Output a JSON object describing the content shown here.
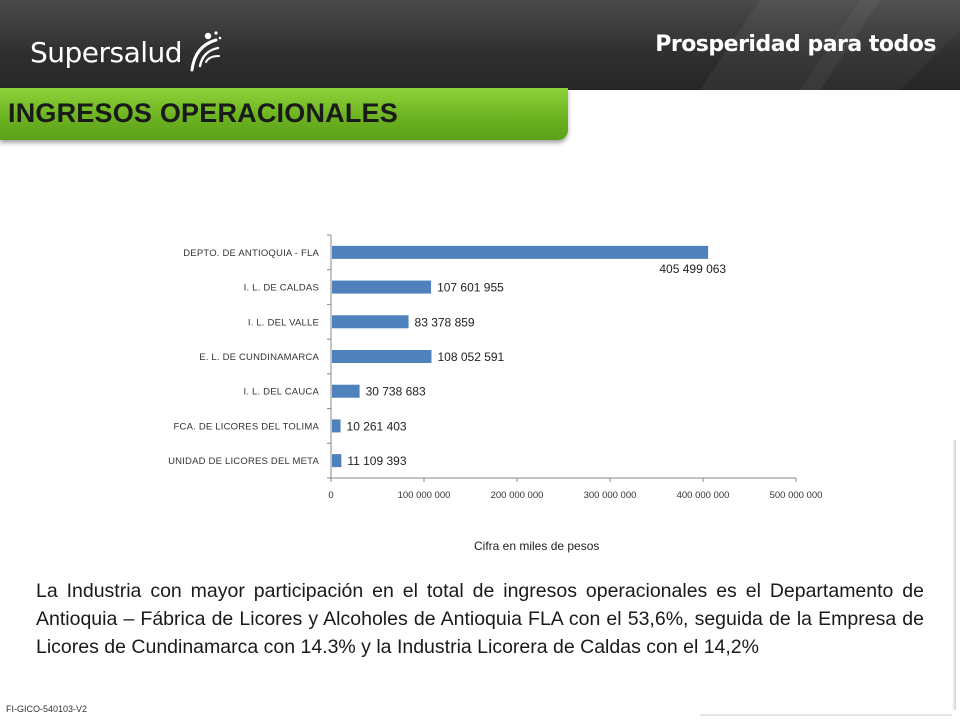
{
  "header": {
    "brand_left": "Supersalud",
    "brand_right": "Prosperidad para todos"
  },
  "title": "INGRESOS OPERACIONALES",
  "unit_note": "Cifra en miles de pesos",
  "body_text": "La Industria con mayor participación en el total de ingresos operacionales es el Departamento de Antioquia – Fábrica de Licores y Alcoholes de Antioquia FLA con el 53,6%, seguida de la Empresa de Licores de Cundinamarca con 14.3% y la Industria Licorera de Caldas con el 14,2%",
  "footer_code": "FI-GICO-540103-V2",
  "colors": {
    "bar": "#4f81bd",
    "title_green": "#6db321",
    "header_dark": "#333333"
  },
  "chart_data": {
    "type": "bar",
    "orientation": "horizontal",
    "categories": [
      "DEPTO. DE ANTIOQUIA - FLA",
      "I. L. DE CALDAS",
      "I. L. DEL VALLE",
      "E. L. DE CUNDINAMARCA",
      "I. L. DEL CAUCA",
      "FCA. DE LICORES DEL TOLIMA",
      "UNIDAD DE LICORES DEL META"
    ],
    "values": [
      405499063,
      107601955,
      83378859,
      108052591,
      30738683,
      10261403,
      11109393
    ],
    "data_labels": [
      "405 499 063",
      "107 601 955",
      "83 378 859",
      "108 052 591",
      "30 738 683",
      "10 261 403",
      "11 109 393"
    ],
    "xlim": [
      0,
      500000000
    ],
    "x_ticks": [
      0,
      100000000,
      200000000,
      300000000,
      400000000,
      500000000
    ],
    "x_tick_labels": [
      "0",
      "100 000 000",
      "200 000 000",
      "300 000 000",
      "400 000 000",
      "500 000 000"
    ],
    "grid": false,
    "legend": "none"
  }
}
